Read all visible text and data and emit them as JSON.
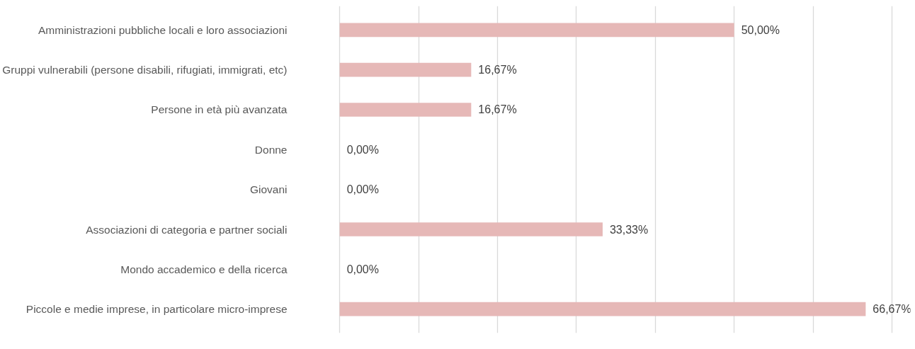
{
  "chart_data": {
    "type": "bar",
    "orientation": "horizontal",
    "categories": [
      "Amministrazioni pubbliche locali e loro associazioni",
      "Gruppi vulnerabili (persone disabili, rifugiati, immigrati, etc)",
      "Persone in età più avanzata",
      "Donne",
      "Giovani",
      "Associazioni di categoria e partner sociali",
      "Mondo accademico e della ricerca",
      "Piccole e medie imprese, in particolare micro-imprese"
    ],
    "values": [
      50,
      16.67,
      16.67,
      0,
      0,
      33.33,
      0,
      66.67
    ],
    "value_labels": [
      "50,00%",
      "16,67%",
      "16,67%",
      "0,00%",
      "0,00%",
      "33,33%",
      "0,00%",
      "66,67%"
    ],
    "color": "#e6b8b7",
    "grid": "x",
    "tick_labels": "y"
  }
}
